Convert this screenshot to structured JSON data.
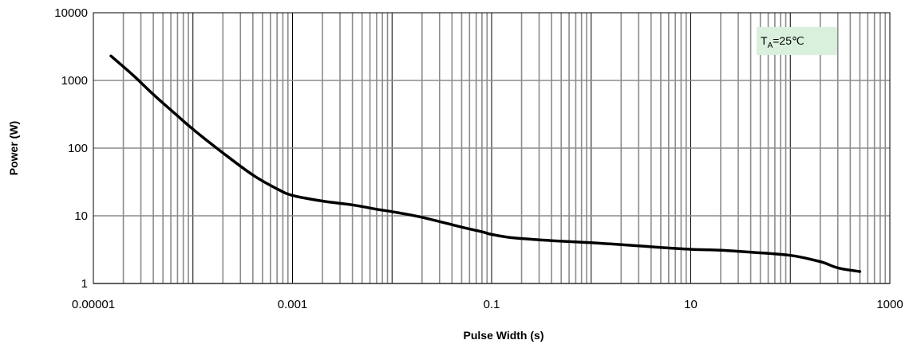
{
  "chart_data": {
    "type": "line",
    "xlabel": "Pulse Width (s)",
    "ylabel": "Power (W)",
    "x_scale": "log",
    "y_scale": "log",
    "xlim": [
      1e-05,
      1000
    ],
    "ylim": [
      1,
      10000
    ],
    "x_ticks": [
      "0.00001",
      "0.001",
      "0.1",
      "10",
      "1000"
    ],
    "y_ticks": [
      "1",
      "10",
      "100",
      "1000",
      "10000"
    ],
    "grid": true,
    "annotation": {
      "main": "T",
      "sub": "A",
      "rest": "=25℃",
      "background": "#d9f0dc"
    },
    "series": [
      {
        "color": "#000000",
        "x": [
          1.5e-05,
          2.5e-05,
          4e-05,
          7e-05,
          0.0001,
          0.0002,
          0.0004,
          0.0007,
          0.001,
          0.002,
          0.004,
          0.007,
          0.01,
          0.02,
          0.05,
          0.08,
          0.1,
          0.15,
          0.25,
          0.4,
          1,
          3,
          5,
          10,
          20,
          40,
          100,
          200,
          300,
          500
        ],
        "y": [
          2300,
          1200,
          620,
          300,
          190,
          85,
          40,
          25,
          20,
          16.5,
          14.5,
          12.5,
          11.5,
          9.5,
          6.8,
          5.8,
          5.3,
          4.8,
          4.5,
          4.3,
          4.0,
          3.6,
          3.4,
          3.2,
          3.1,
          2.9,
          2.6,
          2.1,
          1.7,
          1.5
        ]
      }
    ]
  }
}
